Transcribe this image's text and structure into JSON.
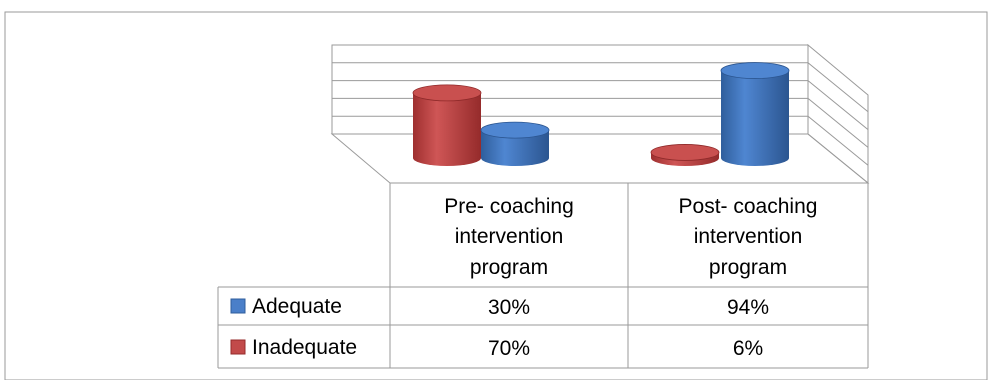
{
  "chart_data": {
    "type": "bar",
    "style": "3d-cylinder",
    "categories": [
      "Pre- coaching intervention program",
      "Post- coaching intervention program"
    ],
    "category_lines": [
      [
        "Pre- coaching",
        "intervention",
        "program"
      ],
      [
        "Post- coaching",
        "intervention",
        "program"
      ]
    ],
    "series": [
      {
        "name": "Adequate",
        "values": [
          30,
          94
        ],
        "labels": [
          "30%",
          "94%"
        ],
        "color": "#4a7fc9"
      },
      {
        "name": "Inadequate",
        "values": [
          70,
          6
        ],
        "labels": [
          "70%",
          "6%"
        ],
        "color": "#c24a4a"
      }
    ],
    "ylim": [
      0,
      100
    ],
    "grid": true,
    "legend": "data-table",
    "title": "",
    "xlabel": "",
    "ylabel": ""
  }
}
